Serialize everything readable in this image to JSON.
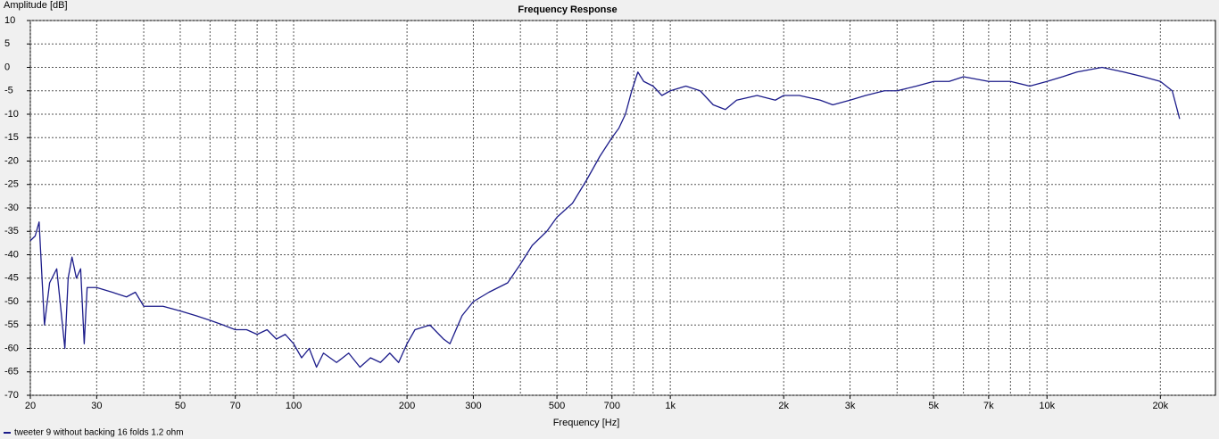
{
  "chart_data": {
    "type": "line",
    "title": "Frequency Response",
    "ylabel": "Amplitude [dB]",
    "xlabel": "Frequency [Hz]",
    "xscale": "log",
    "xlim": [
      20,
      28000
    ],
    "ylim": [
      -70,
      10
    ],
    "yticks": [
      -70,
      -65,
      -60,
      -55,
      -50,
      -45,
      -40,
      -35,
      -30,
      -25,
      -20,
      -15,
      -10,
      -5,
      0,
      5,
      10
    ],
    "xticks": [
      20,
      30,
      50,
      70,
      100,
      200,
      300,
      500,
      700,
      {
        "value": 1000,
        "label": "1k"
      },
      {
        "value": 2000,
        "label": "2k"
      },
      {
        "value": 3000,
        "label": "3k"
      },
      {
        "value": 5000,
        "label": "5k"
      },
      {
        "value": 7000,
        "label": "7k"
      },
      {
        "value": 10000,
        "label": "10k"
      },
      {
        "value": 20000,
        "label": "20k"
      }
    ],
    "xgrid": [
      20,
      30,
      40,
      50,
      60,
      70,
      80,
      90,
      100,
      200,
      300,
      400,
      500,
      600,
      700,
      800,
      900,
      1000,
      2000,
      3000,
      4000,
      5000,
      6000,
      7000,
      8000,
      9000,
      10000,
      20000
    ],
    "grid": true,
    "legend": "bottom-left",
    "x": [
      20,
      20.6,
      21.1,
      21.8,
      22.5,
      23.5,
      24.7,
      25.2,
      25.8,
      26.5,
      27.2,
      27.8,
      28.3,
      30,
      33,
      36,
      38,
      40,
      45,
      50,
      55,
      60,
      65,
      70,
      75,
      80,
      85,
      90,
      95,
      100,
      105,
      110,
      115,
      120,
      130,
      140,
      150,
      160,
      170,
      180,
      190,
      200,
      210,
      230,
      250,
      260,
      280,
      300,
      330,
      370,
      400,
      430,
      470,
      500,
      550,
      600,
      650,
      700,
      730,
      760,
      790,
      820,
      850,
      900,
      950,
      1000,
      1100,
      1200,
      1300,
      1400,
      1500,
      1700,
      1900,
      2000,
      2200,
      2500,
      2700,
      3000,
      3300,
      3700,
      4000,
      4500,
      5000,
      5500,
      6000,
      7000,
      8000,
      9000,
      10000,
      11000,
      12000,
      14000,
      16000,
      18000,
      20000,
      21500,
      22500
    ],
    "series": [
      {
        "name": "tweeter 9 without backing 16 folds 1.2 ohm",
        "color": "#1c1c8a",
        "values": [
          -37,
          -36,
          -33,
          -55,
          -46,
          -43,
          -60,
          -45,
          -40.5,
          -45,
          -43,
          -59,
          -47,
          -47,
          -48,
          -49,
          -48,
          -51,
          -51,
          -52,
          -53,
          -54,
          -55,
          -56,
          -56,
          -57,
          -56,
          -58,
          -57,
          -59,
          -62,
          -60,
          -64,
          -61,
          -63,
          -61,
          -64,
          -62,
          -63,
          -61,
          -63,
          -59,
          -56,
          -55,
          -58,
          -59,
          -53,
          -50,
          -48,
          -46,
          -42,
          -38,
          -35,
          -32,
          -29,
          -24,
          -19,
          -15,
          -13,
          -10,
          -5,
          -1,
          -3,
          -4,
          -6,
          -5,
          -4,
          -5,
          -8,
          -9,
          -7,
          -6,
          -7,
          -6,
          -6,
          -7,
          -8,
          -7,
          -6,
          -5,
          -5,
          -4,
          -3,
          -3,
          -2,
          -3,
          -3,
          -4,
          -3,
          -2,
          -1,
          0,
          -1,
          -2,
          -3,
          -5,
          -11
        ]
      }
    ]
  }
}
